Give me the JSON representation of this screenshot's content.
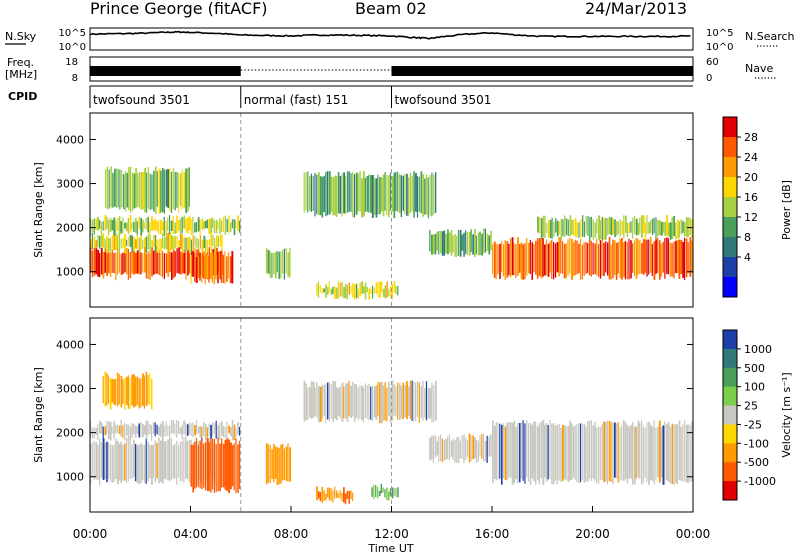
{
  "header": {
    "station": "Prince George (fitACF)",
    "beam": "Beam 02",
    "date": "24/Mar/2013"
  },
  "left_labels": {
    "nsky": "N.Sky",
    "freq": "Freq.",
    "freq_unit": "[MHz]",
    "cpid": "CPID"
  },
  "right_labels": {
    "nsearch": "N.Search",
    "nave": "Nave"
  },
  "chart_data": [
    {
      "type": "line",
      "panel": "noise",
      "series": [
        {
          "name": "N.Sky",
          "style": "solid",
          "x": [
            0,
            1,
            2,
            3,
            3.5,
            4,
            5,
            6,
            7,
            8,
            9,
            10,
            11,
            12,
            13,
            13.5,
            14,
            15,
            16,
            17,
            18,
            19,
            20,
            21,
            22,
            23,
            24
          ],
          "y": [
            3.6,
            3.7,
            3.8,
            4.0,
            4.1,
            4.0,
            3.8,
            3.4,
            3.3,
            3.2,
            3.4,
            3.4,
            3.3,
            3.2,
            2.8,
            2.6,
            3.0,
            3.6,
            3.9,
            3.4,
            3.1,
            3.1,
            3.1,
            3.1,
            3.1,
            3.1,
            3.2
          ]
        },
        {
          "name": "N.Search",
          "style": "dotted",
          "x": [],
          "y": []
        }
      ],
      "yticks_left": [
        "10^5",
        "10^0"
      ],
      "yticks_right": [
        "10^5",
        "10^0"
      ],
      "xlim": [
        0,
        24
      ]
    },
    {
      "type": "line",
      "panel": "freq-nave",
      "series": [
        {
          "name": "Freq. [MHz]",
          "axis": "left",
          "segments": [
            [
              0,
              6,
              "solid"
            ],
            [
              6,
              12,
              "dotted"
            ],
            [
              12,
              24,
              "solid"
            ]
          ],
          "y": 10
        }
      ],
      "yticks_left": [
        "18",
        "8"
      ],
      "yticks_right": [
        "60",
        "0"
      ],
      "xlim": [
        0,
        24
      ]
    },
    {
      "type": "table",
      "panel": "cpid",
      "segments": [
        {
          "start": 0,
          "end": 6,
          "label": "twofsound 3501"
        },
        {
          "start": 6,
          "end": 12,
          "label": "normal (fast) 151"
        },
        {
          "start": 12,
          "end": 24,
          "label": "twofsound 3501"
        }
      ]
    },
    {
      "type": "heatmap",
      "panel": "power",
      "ylabel": "Slant Range [km]",
      "ylim": [
        200,
        4600
      ],
      "yticks": [
        1000,
        2000,
        3000,
        4000
      ],
      "xlim": [
        0,
        24
      ],
      "colorbar": {
        "label": "Power [dB]",
        "ticks": [
          "28",
          "24",
          "20",
          "16",
          "12",
          "8",
          "4"
        ],
        "colors": [
          "#e00000",
          "#ff5a00",
          "#ff9b00",
          "#ffd700",
          "#a8d040",
          "#4aa05a",
          "#2f7a78",
          "#1e3ea8",
          "#0000ff"
        ]
      },
      "bands": [
        {
          "x0": 0,
          "x1": 5.3,
          "y0": 900,
          "y1": 1500,
          "level": 24
        },
        {
          "x0": 0,
          "x1": 5.3,
          "y0": 1500,
          "y1": 1800,
          "level": 14
        },
        {
          "x0": 0,
          "x1": 6.0,
          "y0": 1900,
          "y1": 2200,
          "level": 12
        },
        {
          "x0": 0.6,
          "x1": 4.0,
          "y0": 2400,
          "y1": 3300,
          "level": 10
        },
        {
          "x0": 4.0,
          "x1": 5.7,
          "y0": 800,
          "y1": 1400,
          "level": 22
        },
        {
          "x0": 7.0,
          "x1": 8.0,
          "y0": 900,
          "y1": 1500,
          "level": 10
        },
        {
          "x0": 8.5,
          "x1": 13.8,
          "y0": 2300,
          "y1": 3200,
          "level": 8
        },
        {
          "x0": 13.5,
          "x1": 16.0,
          "y0": 1400,
          "y1": 1900,
          "level": 8
        },
        {
          "x0": 16.0,
          "x1": 24.0,
          "y0": 900,
          "y1": 1700,
          "level": 24
        },
        {
          "x0": 17.8,
          "x1": 24.0,
          "y0": 1800,
          "y1": 2200,
          "level": 12
        },
        {
          "x0": 9.0,
          "x1": 12.3,
          "y0": 450,
          "y1": 700,
          "level": 14
        }
      ]
    },
    {
      "type": "heatmap",
      "panel": "velocity",
      "ylabel": "Slant Range [km]",
      "ylim": [
        200,
        4600
      ],
      "yticks": [
        1000,
        2000,
        3000,
        4000
      ],
      "xlabel": "Time UT",
      "xlim": [
        0,
        24
      ],
      "xticks": [
        "00:00",
        "04:00",
        "08:00",
        "12:00",
        "16:00",
        "20:00",
        "00:00"
      ],
      "colorbar": {
        "label": "Velocity [m s⁻¹]",
        "ticks": [
          "1000",
          "500",
          "100",
          "25",
          "-25",
          "-100",
          "-500",
          "-1000"
        ],
        "colors": [
          "#1e3ea8",
          "#2f7a78",
          "#4aa05a",
          "#7ccf4a",
          "#c8c8c0",
          "#ffd700",
          "#ff9b00",
          "#ff5a00",
          "#e00000"
        ]
      },
      "bands": [
        {
          "x0": 0,
          "x1": 5.0,
          "y0": 900,
          "y1": 1800,
          "v": 0
        },
        {
          "x0": 0,
          "x1": 6.0,
          "y0": 1900,
          "y1": 2200,
          "v": 0
        },
        {
          "x0": 4.0,
          "x1": 6.0,
          "y0": 700,
          "y1": 1800,
          "v": -800
        },
        {
          "x0": 7.0,
          "x1": 8.0,
          "y0": 900,
          "y1": 1700,
          "v": -300
        },
        {
          "x0": 8.5,
          "x1": 13.8,
          "y0": 2300,
          "y1": 3100,
          "v": 0
        },
        {
          "x0": 13.5,
          "x1": 16.0,
          "y0": 1400,
          "y1": 1900,
          "v": 0
        },
        {
          "x0": 16.0,
          "x1": 24.0,
          "y0": 900,
          "y1": 2200,
          "v": 0
        },
        {
          "x0": 0.5,
          "x1": 2.5,
          "y0": 2600,
          "y1": 3300,
          "v": -200
        },
        {
          "x0": 9.0,
          "x1": 10.5,
          "y0": 450,
          "y1": 700,
          "v": -400
        },
        {
          "x0": 11.2,
          "x1": 12.3,
          "y0": 550,
          "y1": 750,
          "v": 150
        }
      ]
    }
  ]
}
